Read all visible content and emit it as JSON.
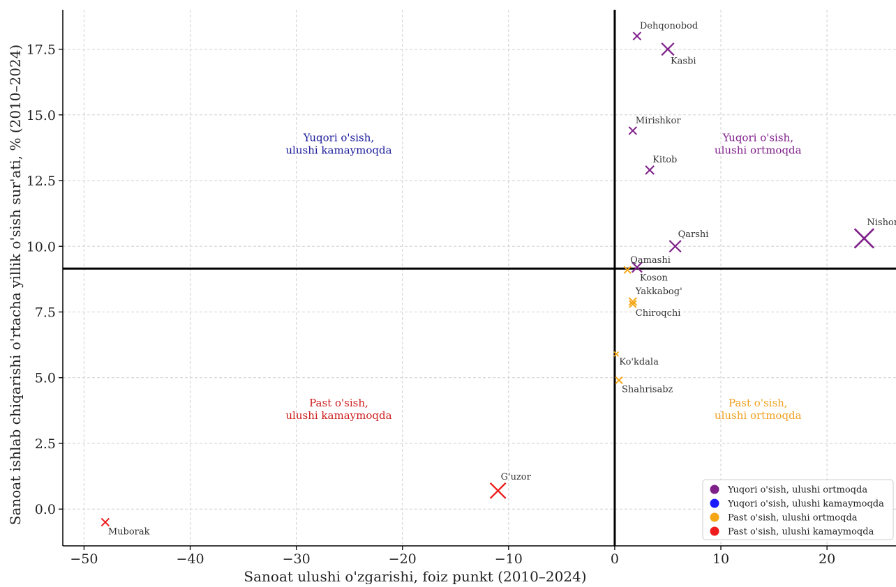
{
  "chart_data": {
    "type": "scatter",
    "title": "",
    "xlabel": "Sanoat ulushi o'zgarishi, foiz punkt (2010–2024)",
    "ylabel": "Sanoat ishlab chiqarishi o'rtacha yillik o'sish sur'ati, % (2010–2024)",
    "xlim": [
      -52,
      26.5
    ],
    "ylim": [
      -1.4,
      19.0
    ],
    "xticks": [
      -50,
      -40,
      -30,
      -20,
      -10,
      0,
      10,
      20
    ],
    "xtick_labels": [
      "−50",
      "−40",
      "−30",
      "−20",
      "−10",
      "0",
      "10",
      "20"
    ],
    "yticks": [
      0.0,
      2.5,
      5.0,
      7.5,
      10.0,
      12.5,
      15.0,
      17.5
    ],
    "ytick_labels": [
      "0.0",
      "2.5",
      "5.0",
      "7.5",
      "10.0",
      "12.5",
      "15.0",
      "17.5"
    ],
    "grid": true,
    "reference_lines": {
      "x": 0,
      "y": 9.15
    },
    "categories": [
      {
        "key": "hi_up",
        "name": "Yuqori o'sish, ulushi ortmoqda",
        "color": "#7f1f8a"
      },
      {
        "key": "hi_down",
        "name": "Yuqori o'sish, ulushi kamaymoqda",
        "color": "#1a1aff"
      },
      {
        "key": "lo_up",
        "name": "Past o'sish, ulushi ortmoqda",
        "color": "#f5a614"
      },
      {
        "key": "lo_down",
        "name": "Past o'sish, ulushi kamaymoqda",
        "color": "#ee1c1c"
      }
    ],
    "quadrant_labels": [
      {
        "text": [
          "Yuqori o'sish,",
          "ulushi kamaymoqda"
        ],
        "x": -26,
        "y": 14.0,
        "color": "#1a1a99"
      },
      {
        "text": [
          "Yuqori o'sish,",
          "ulushi ortmoqda"
        ],
        "x": 13.5,
        "y": 14.0,
        "color": "#7f1f8a"
      },
      {
        "text": [
          "Past o'sish,",
          "ulushi kamaymoqda"
        ],
        "x": -26,
        "y": 3.9,
        "color": "#cc1c1c"
      },
      {
        "text": [
          "Past o'sish,",
          "ulushi ortmoqda"
        ],
        "x": 13.5,
        "y": 3.9,
        "color": "#f0a020"
      }
    ],
    "points": [
      {
        "name": "Dehqonobod",
        "x": 2.1,
        "y": 18.0,
        "size": 1,
        "category": "hi_up",
        "label_pos": "above-right"
      },
      {
        "name": "Kasbi",
        "x": 5.0,
        "y": 17.5,
        "size": 1.6,
        "category": "hi_up",
        "label_pos": "below-right"
      },
      {
        "name": "Mirishkor",
        "x": 1.7,
        "y": 14.4,
        "size": 1,
        "category": "hi_up",
        "label_pos": "above-right"
      },
      {
        "name": "Kitob",
        "x": 3.3,
        "y": 12.9,
        "size": 1.1,
        "category": "hi_up",
        "label_pos": "above-right"
      },
      {
        "name": "Nishon",
        "x": 23.5,
        "y": 10.3,
        "size": 2.5,
        "category": "hi_up",
        "label_pos": "above-right"
      },
      {
        "name": "Qarshi",
        "x": 5.7,
        "y": 10.0,
        "size": 1.5,
        "category": "hi_up",
        "label_pos": "above-right"
      },
      {
        "name": "Koson",
        "x": 2.1,
        "y": 9.2,
        "size": 1.3,
        "category": "hi_up",
        "label_pos": "below-right"
      },
      {
        "name": "Qamashi",
        "x": 1.2,
        "y": 9.1,
        "size": 0.9,
        "category": "lo_up",
        "label_pos": "above-right"
      },
      {
        "name": "Yakkabog'",
        "x": 1.7,
        "y": 7.9,
        "size": 1,
        "category": "lo_up",
        "label_pos": "above-right"
      },
      {
        "name": "Chiroqchi",
        "x": 1.7,
        "y": 7.8,
        "size": 0.9,
        "category": "lo_up",
        "label_pos": "below-right"
      },
      {
        "name": "Ko'kdala",
        "x": 0.15,
        "y": 5.9,
        "size": 0.6,
        "category": "lo_up",
        "label_pos": "below-right"
      },
      {
        "name": "Shahrisabz",
        "x": 0.4,
        "y": 4.9,
        "size": 0.9,
        "category": "lo_up",
        "label_pos": "below-right"
      },
      {
        "name": "G'uzor",
        "x": -11.0,
        "y": 0.7,
        "size": 2.0,
        "category": "lo_down",
        "label_pos": "above-right"
      },
      {
        "name": "Muborak",
        "x": -48.0,
        "y": -0.5,
        "size": 1,
        "category": "lo_down",
        "label_pos": "below-right"
      }
    ],
    "legend_position": "lower-right"
  }
}
